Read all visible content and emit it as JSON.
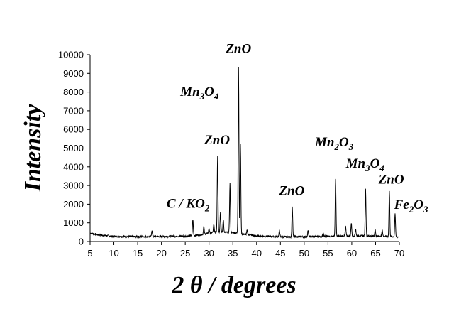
{
  "chart_data": {
    "type": "line",
    "xlabel": "2 θ / degrees",
    "ylabel": "Intensity",
    "xlim": [
      5,
      70
    ],
    "ylim": [
      0,
      10000
    ],
    "x_ticks": [
      5,
      10,
      15,
      20,
      25,
      30,
      35,
      40,
      45,
      50,
      55,
      60,
      65,
      70
    ],
    "y_ticks": [
      0,
      1000,
      2000,
      3000,
      4000,
      5000,
      6000,
      7000,
      8000,
      9000,
      10000
    ],
    "grid": false,
    "legend": "none",
    "background_level": [
      [
        5,
        450
      ],
      [
        7,
        350
      ],
      [
        10,
        280
      ],
      [
        15,
        260
      ],
      [
        20,
        270
      ],
      [
        25,
        290
      ],
      [
        28,
        350
      ],
      [
        31,
        500
      ],
      [
        35,
        480
      ],
      [
        40,
        300
      ],
      [
        45,
        250
      ],
      [
        50,
        260
      ],
      [
        55,
        280
      ],
      [
        60,
        300
      ],
      [
        65,
        300
      ],
      [
        70,
        250
      ]
    ],
    "peaks": [
      {
        "x": 18.0,
        "y": 600
      },
      {
        "x": 26.6,
        "y": 1200
      },
      {
        "x": 28.9,
        "y": 800
      },
      {
        "x": 30.0,
        "y": 700
      },
      {
        "x": 31.0,
        "y": 900
      },
      {
        "x": 31.8,
        "y": 4600
      },
      {
        "x": 32.4,
        "y": 1600
      },
      {
        "x": 33.0,
        "y": 1200
      },
      {
        "x": 34.4,
        "y": 3100
      },
      {
        "x": 36.2,
        "y": 9350
      },
      {
        "x": 36.6,
        "y": 5200
      },
      {
        "x": 38.0,
        "y": 600
      },
      {
        "x": 44.8,
        "y": 600
      },
      {
        "x": 47.5,
        "y": 1850
      },
      {
        "x": 50.8,
        "y": 600
      },
      {
        "x": 54.0,
        "y": 500
      },
      {
        "x": 56.6,
        "y": 3350
      },
      {
        "x": 58.7,
        "y": 800
      },
      {
        "x": 59.9,
        "y": 1000
      },
      {
        "x": 60.8,
        "y": 700
      },
      {
        "x": 62.9,
        "y": 2800
      },
      {
        "x": 64.9,
        "y": 650
      },
      {
        "x": 66.4,
        "y": 650
      },
      {
        "x": 67.9,
        "y": 2700
      },
      {
        "x": 69.1,
        "y": 1500
      }
    ],
    "annotations": [
      {
        "id": "c_ko2",
        "parts": [
          [
            "C / KO",
            false
          ],
          [
            "2",
            true
          ]
        ],
        "x": 30.1,
        "y": 1800,
        "anchor": "end"
      },
      {
        "id": "zno_1",
        "parts": [
          [
            "ZnO",
            false
          ]
        ],
        "x": 31.7,
        "y": 5200,
        "anchor": "middle"
      },
      {
        "id": "mn3o4_1",
        "parts": [
          [
            "Mn",
            false
          ],
          [
            "3",
            true
          ],
          [
            "O",
            false
          ],
          [
            "4",
            true
          ]
        ],
        "x": 28.0,
        "y": 7800,
        "anchor": "middle"
      },
      {
        "id": "zno_2",
        "parts": [
          [
            "ZnO",
            false
          ]
        ],
        "x": 36.2,
        "y": 10100,
        "anchor": "middle"
      },
      {
        "id": "zno_3",
        "parts": [
          [
            "ZnO",
            false
          ]
        ],
        "x": 47.4,
        "y": 2500,
        "anchor": "middle"
      },
      {
        "id": "mn2o3",
        "parts": [
          [
            "Mn",
            false
          ],
          [
            "2",
            true
          ],
          [
            "O",
            false
          ],
          [
            "3",
            true
          ]
        ],
        "x": 56.3,
        "y": 5100,
        "anchor": "middle"
      },
      {
        "id": "mn3o4_2",
        "parts": [
          [
            "Mn",
            false
          ],
          [
            "3",
            true
          ],
          [
            "O",
            false
          ],
          [
            "4",
            true
          ]
        ],
        "x": 62.8,
        "y": 3950,
        "anchor": "middle"
      },
      {
        "id": "zno_4",
        "parts": [
          [
            "ZnO",
            false
          ]
        ],
        "x": 68.3,
        "y": 3100,
        "anchor": "middle"
      },
      {
        "id": "fe2o3",
        "parts": [
          [
            "Fe",
            false
          ],
          [
            "2",
            true
          ],
          [
            "O",
            false
          ],
          [
            "3",
            true
          ]
        ],
        "x": 68.9,
        "y": 1750,
        "anchor": "start"
      }
    ]
  }
}
